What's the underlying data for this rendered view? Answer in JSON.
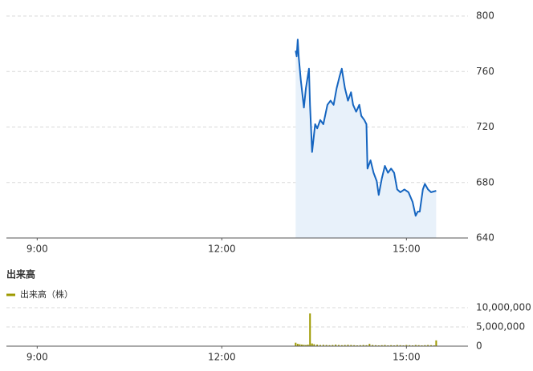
{
  "chart_data": [
    {
      "type": "line",
      "color": "#1565c0",
      "area_color": "#e8f1fa",
      "grid": true,
      "x": [
        792,
        793,
        794,
        795,
        797,
        800,
        802,
        805,
        806,
        808,
        811,
        813,
        816,
        819,
        823,
        826,
        829,
        832,
        835,
        837,
        840,
        843,
        846,
        848,
        851,
        854,
        856,
        859,
        861,
        862,
        865,
        868,
        871,
        873,
        876,
        879,
        882,
        885,
        888,
        891,
        894,
        898,
        902,
        906,
        909,
        911,
        913,
        916,
        918,
        921,
        924,
        929
      ],
      "values": [
        775,
        771,
        783,
        770,
        754,
        734,
        748,
        762,
        736,
        702,
        722,
        719,
        725,
        722,
        736,
        739,
        736,
        748,
        757,
        762,
        748,
        739,
        745,
        736,
        731,
        736,
        728,
        725,
        722,
        690,
        696,
        687,
        681,
        671,
        683,
        692,
        687,
        690,
        687,
        675,
        673,
        675,
        673,
        666,
        656,
        659,
        659,
        675,
        679,
        675,
        673,
        674
      ],
      "xlim": [
        510,
        960
      ],
      "xticks": [
        {
          "value": 540,
          "label": "9:00"
        },
        {
          "value": 720,
          "label": "12:00"
        },
        {
          "value": 900,
          "label": "15:00"
        }
      ],
      "ylim": [
        640,
        800
      ],
      "yticks": [
        640,
        680,
        720,
        760,
        800
      ]
    },
    {
      "type": "bar",
      "title": "出来高",
      "color": "#9e9a00",
      "grid": true,
      "series": [
        {
          "name": "出来高（株）",
          "color": "#9e9a00",
          "x": [
            792,
            794,
            796,
            798,
            800,
            802,
            804,
            806,
            808,
            810,
            813,
            816,
            819,
            822,
            825,
            828,
            831,
            834,
            837,
            840,
            843,
            846,
            849,
            852,
            855,
            858,
            861,
            864,
            867,
            870,
            873,
            876,
            879,
            882,
            885,
            888,
            891,
            894,
            897,
            900,
            903,
            906,
            909,
            912,
            915,
            918,
            921,
            924,
            927,
            929
          ],
          "values": [
            900000,
            600000,
            500000,
            400000,
            350000,
            300000,
            400000,
            8500000,
            700000,
            500000,
            400000,
            300000,
            350000,
            300000,
            250000,
            300000,
            400000,
            300000,
            250000,
            300000,
            350000,
            300000,
            250000,
            200000,
            250000,
            300000,
            250000,
            600000,
            300000,
            250000,
            200000,
            250000,
            300000,
            200000,
            250000,
            200000,
            300000,
            250000,
            200000,
            300000,
            250000,
            200000,
            300000,
            250000,
            200000,
            250000,
            300000,
            250000,
            200000,
            1500000
          ]
        }
      ],
      "xlim": [
        510,
        960
      ],
      "xticks": [
        {
          "value": 540,
          "label": "9:00"
        },
        {
          "value": 720,
          "label": "12:00"
        },
        {
          "value": 900,
          "label": "15:00"
        }
      ],
      "ylim": [
        0,
        12500000
      ],
      "yticks": [
        0,
        {
          "value": 5000000,
          "label": "5,000,000"
        },
        {
          "value": 10000000,
          "label": "10,000,000"
        }
      ]
    }
  ]
}
